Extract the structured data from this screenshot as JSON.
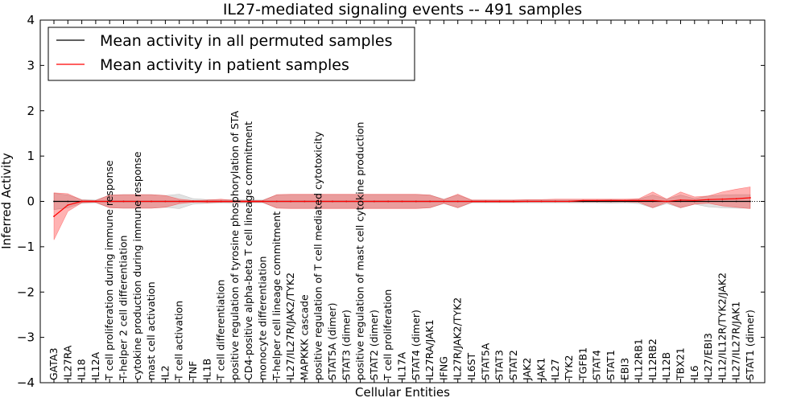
{
  "chart_data": {
    "type": "line",
    "title": "IL27-mediated signaling events -- 491 samples",
    "xlabel": "Cellular Entities",
    "ylabel": "Inferred Activity",
    "ylim": [
      -4,
      4
    ],
    "yticks": [
      -4,
      -3,
      -2,
      -1,
      0,
      1,
      2,
      3,
      4
    ],
    "grid": false,
    "legend_position": "top-left",
    "categories": [
      "GATA3",
      "IL27RA",
      "IL18",
      "IL12A",
      "T cell proliferation during immune response",
      "T-helper 2 cell differentiation",
      "cytokine production during immune response",
      "mast cell activation",
      "IL2",
      "T cell activation",
      "TNF",
      "IL1B",
      "T cell differentiation",
      "positive regulation of tyrosine phosphorylation of STA",
      "CD4-positive alpha-beta T cell lineage commitment",
      "monocyte differentiation",
      "T-helper cell lineage commitment",
      "IL27/IL27R/JAK2/TYK2",
      "MAPKKK cascade",
      "positive regulation of T cell mediated cytotoxicity",
      "STAT5A (dimer)",
      "STAT3 (dimer)",
      "positive regulation of mast cell cytokine production",
      "STAT2 (dimer)",
      "T cell proliferation",
      "IL17A",
      "STAT4 (dimer)",
      "IL27RA/JAK1",
      "IFNG",
      "IL27R/JAK2/TYK2",
      "IL6ST",
      "STAT5A",
      "STAT3",
      "STAT2",
      "JAK2",
      "JAK1",
      "IL27",
      "TYK2",
      "TGFB1",
      "STAT4",
      "STAT1",
      "EBI3",
      "IL12RB1",
      "IL12RB2",
      "IL12B",
      "TBX21",
      "IL6",
      "IL27/EBI3",
      "IL12/IL12R/TYK2/JAK2",
      "IL27/IL27R/JAK1",
      "STAT1 (dimer)"
    ],
    "series": [
      {
        "name": "Mean activity in all permuted samples",
        "color": "#000000",
        "values": [
          0,
          0,
          0,
          0,
          0,
          0,
          0,
          0,
          0,
          0,
          0,
          0,
          0,
          0,
          0,
          0,
          0,
          0,
          0,
          0,
          0,
          0,
          0,
          0,
          0,
          0,
          0,
          0,
          0,
          0,
          0,
          0,
          0,
          0,
          0,
          0,
          0,
          0,
          0,
          0,
          0,
          0,
          0,
          0,
          0,
          0,
          0,
          0,
          0,
          0,
          0
        ],
        "band_upper": [
          0.18,
          0.14,
          0.04,
          0.03,
          0.14,
          0.15,
          0.15,
          0.15,
          0.13,
          0.16,
          0.06,
          0.04,
          0.03,
          0.04,
          0.03,
          0.03,
          0.14,
          0.15,
          0.15,
          0.15,
          0.15,
          0.15,
          0.15,
          0.15,
          0.15,
          0.15,
          0.15,
          0.14,
          0.05,
          0.14,
          0.03,
          0.03,
          0.03,
          0.03,
          0.03,
          0.03,
          0.03,
          0.03,
          0.03,
          0.03,
          0.04,
          0.03,
          0.05,
          0.14,
          0.05,
          0.14,
          0.06,
          0.12,
          0.14,
          0.15,
          0.15
        ],
        "band_lower": [
          -0.18,
          -0.14,
          -0.04,
          -0.03,
          -0.14,
          -0.15,
          -0.15,
          -0.15,
          -0.13,
          -0.16,
          -0.06,
          -0.04,
          -0.03,
          -0.04,
          -0.03,
          -0.03,
          -0.14,
          -0.15,
          -0.15,
          -0.15,
          -0.15,
          -0.15,
          -0.15,
          -0.15,
          -0.15,
          -0.15,
          -0.15,
          -0.14,
          -0.05,
          -0.14,
          -0.03,
          -0.03,
          -0.03,
          -0.03,
          -0.03,
          -0.03,
          -0.03,
          -0.03,
          -0.03,
          -0.03,
          -0.04,
          -0.03,
          -0.05,
          -0.14,
          -0.05,
          -0.14,
          -0.06,
          -0.12,
          -0.14,
          -0.15,
          -0.15
        ]
      },
      {
        "name": "Mean activity in patient samples",
        "color": "#ff0000",
        "values": [
          -0.33,
          -0.08,
          0,
          0,
          0,
          0,
          0,
          0,
          0,
          0,
          0,
          0,
          0,
          0,
          0,
          0,
          0,
          0,
          0,
          0,
          0,
          0,
          0,
          0,
          0,
          0,
          0,
          0,
          0,
          0,
          0,
          0,
          0,
          0,
          0,
          0,
          0,
          0,
          0.02,
          0.02,
          0.02,
          0.02,
          0.02,
          0.02,
          0,
          0.03,
          0.02,
          0.04,
          0.05,
          0.06,
          0.08
        ],
        "band_upper": [
          0.19,
          0.17,
          0.03,
          0.02,
          0.14,
          0.15,
          0.15,
          0.15,
          0.13,
          0.05,
          0.02,
          0.03,
          0.05,
          0.02,
          0.02,
          0.02,
          0.15,
          0.16,
          0.16,
          0.16,
          0.16,
          0.16,
          0.16,
          0.16,
          0.16,
          0.16,
          0.16,
          0.14,
          0.04,
          0.16,
          0.03,
          0.03,
          0.03,
          0.03,
          0.04,
          0.04,
          0.05,
          0.05,
          0.05,
          0.05,
          0.05,
          0.05,
          0.06,
          0.21,
          0.05,
          0.21,
          0.1,
          0.12,
          0.21,
          0.27,
          0.32
        ],
        "band_lower": [
          -0.85,
          -0.22,
          -0.03,
          -0.02,
          -0.14,
          -0.15,
          -0.15,
          -0.15,
          -0.13,
          -0.05,
          -0.02,
          -0.03,
          -0.02,
          -0.02,
          -0.02,
          -0.02,
          -0.15,
          -0.16,
          -0.16,
          -0.16,
          -0.16,
          -0.16,
          -0.16,
          -0.16,
          -0.16,
          -0.16,
          -0.16,
          -0.14,
          -0.04,
          -0.14,
          -0.02,
          -0.02,
          -0.02,
          -0.02,
          -0.01,
          -0.01,
          -0.01,
          -0.01,
          -0.01,
          -0.01,
          -0.01,
          -0.01,
          -0.02,
          -0.14,
          -0.02,
          -0.14,
          -0.06,
          -0.04,
          -0.1,
          -0.13,
          -0.16
        ]
      }
    ]
  }
}
